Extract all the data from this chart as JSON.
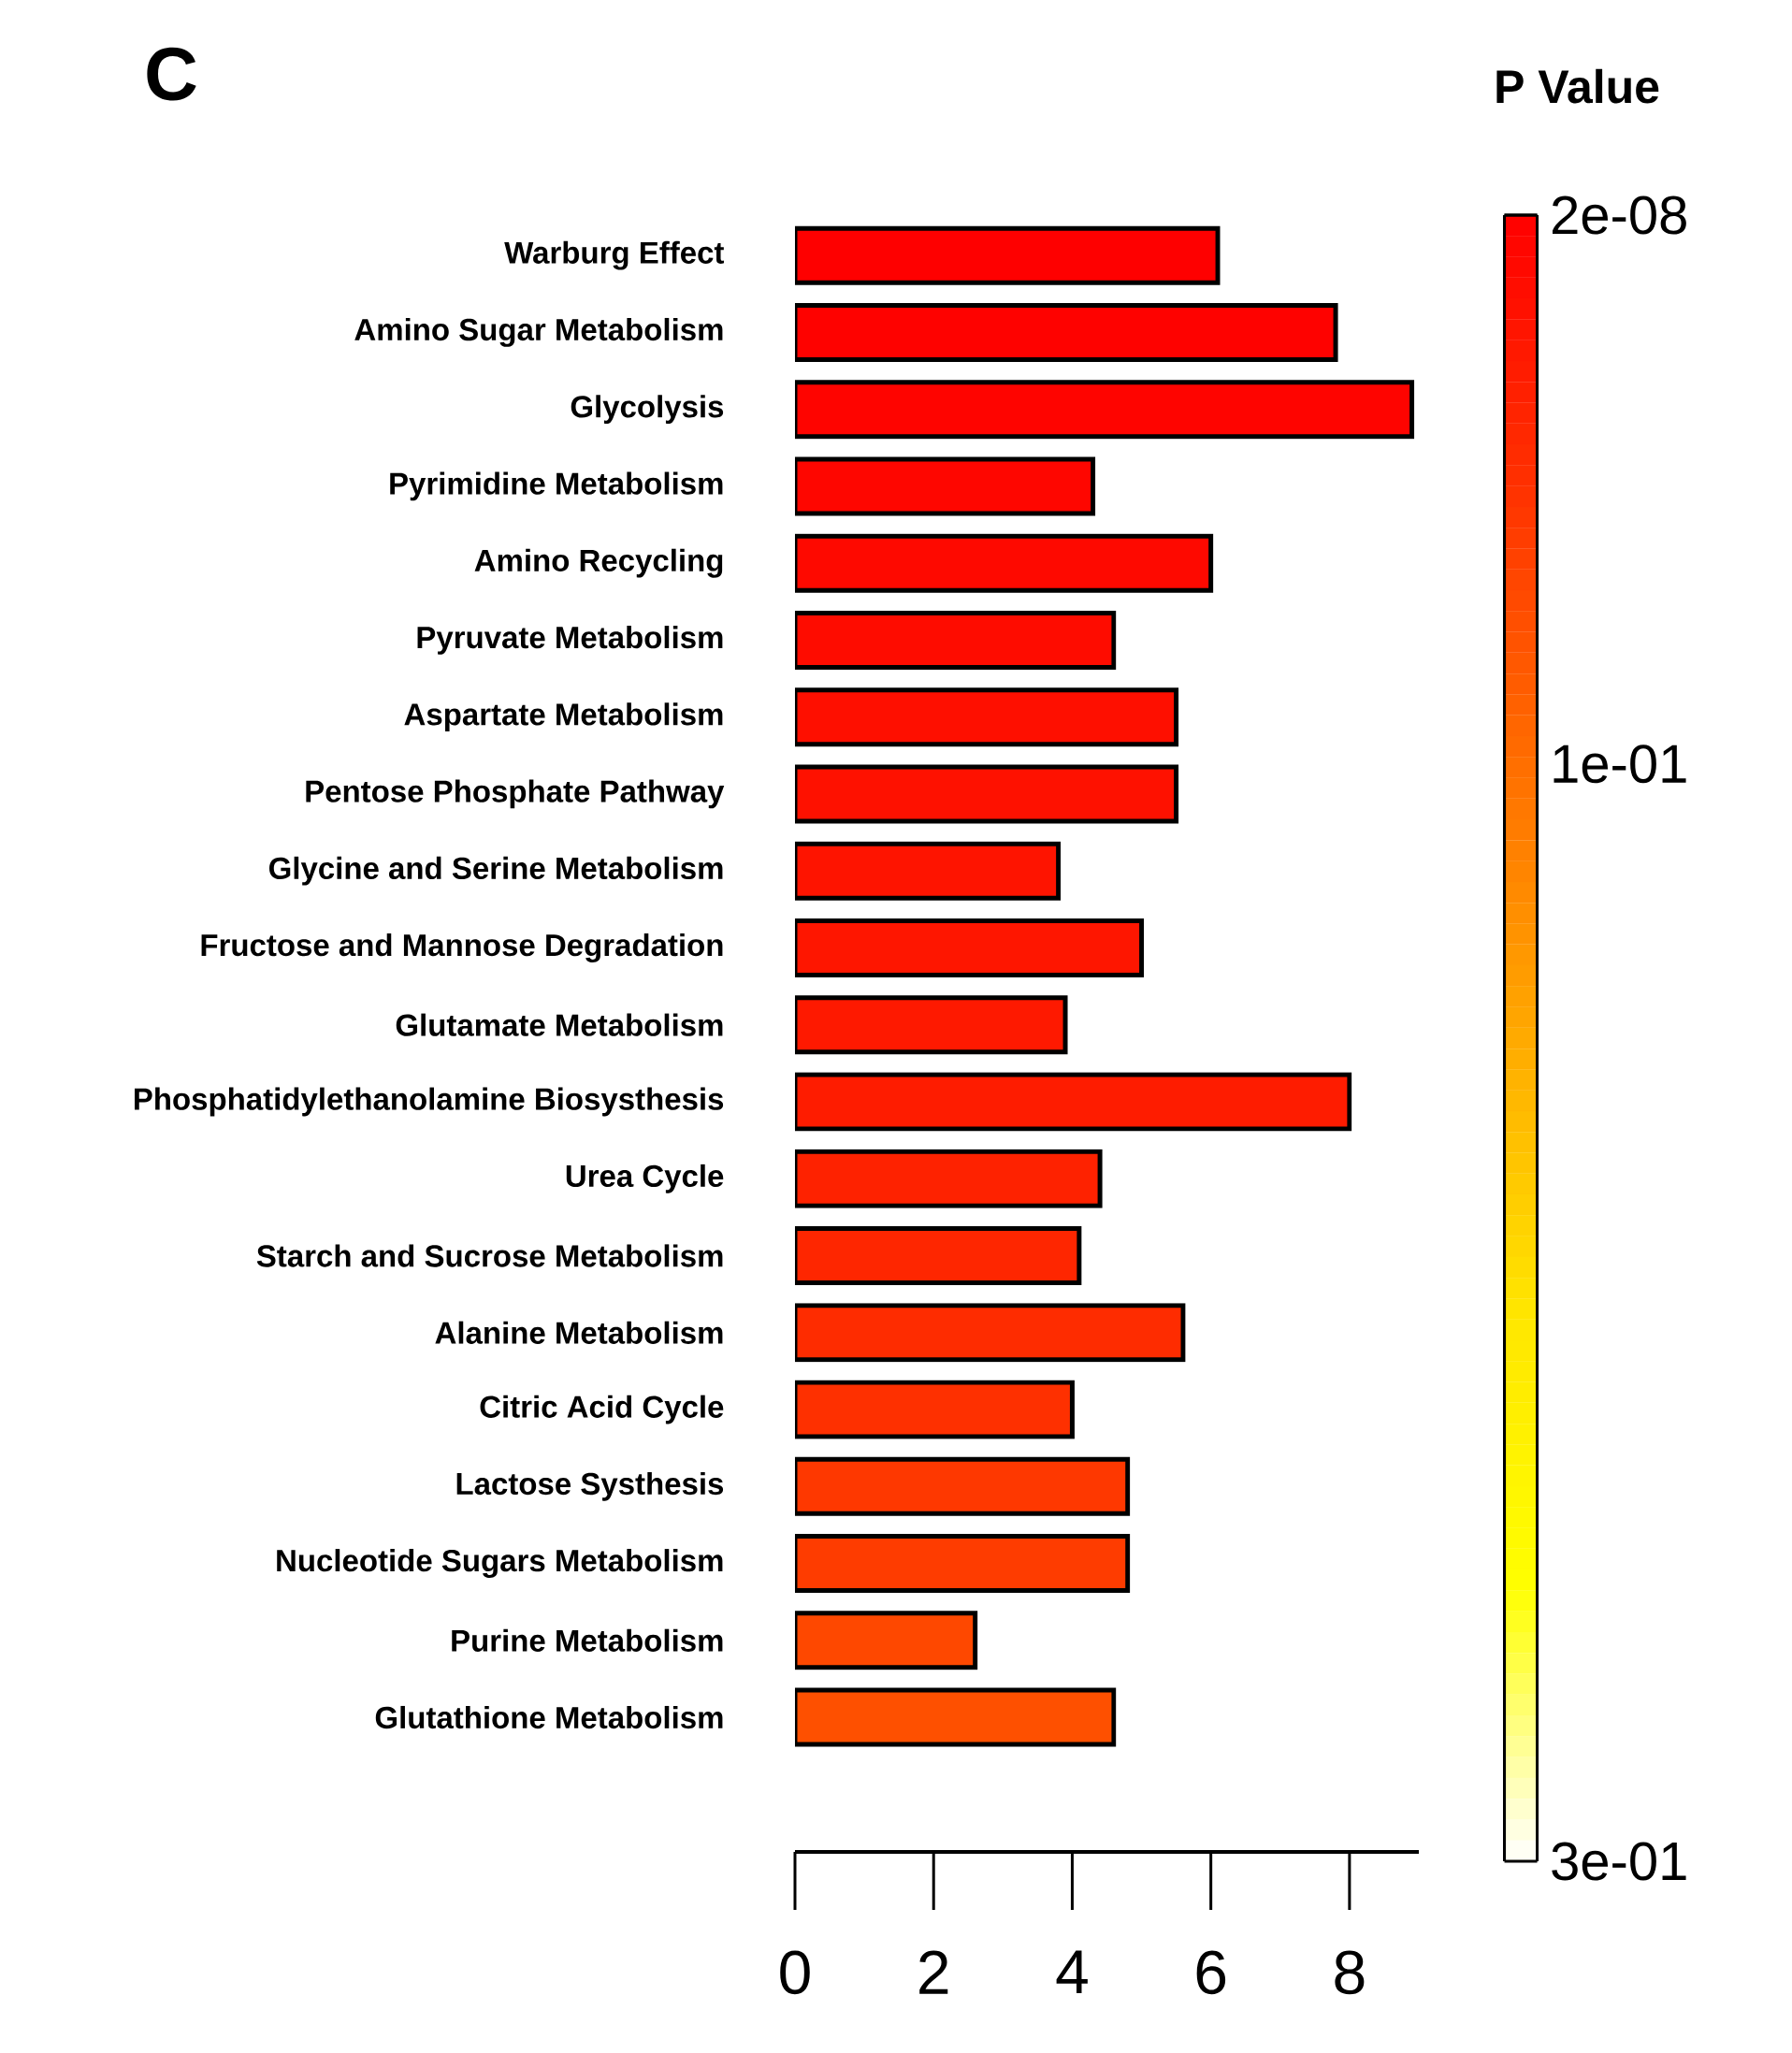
{
  "chart_data": {
    "type": "bar",
    "orientation": "horizontal",
    "title": "C",
    "clabel": "P Value",
    "categories": [
      "Warburg Effect",
      "Amino Sugar Metabolism",
      "Glycolysis",
      "Pyrimidine Metabolism",
      "Amino Recycling",
      "Pyruvate Metabolism",
      "Aspartate Metabolism",
      "Pentose Phosphate Pathway",
      "Glycine and Serine Metabolism",
      "Fructose and Mannose Degradation",
      "Glutamate Metabolism",
      "Phosphatidylethanolamine Biosysthesis",
      "Urea Cycle",
      "Starch and Sucrose Metabolism",
      "Alanine Metabolism",
      "Citric Acid Cycle",
      "Lactose Systhesis",
      "Nucleotide Sugars Metabolism",
      "Purine Metabolism",
      "Glutathione Metabolism"
    ],
    "values": [
      6.1,
      7.8,
      8.9,
      4.3,
      6.0,
      4.6,
      5.5,
      5.5,
      3.8,
      5.0,
      3.9,
      8.0,
      4.4,
      4.1,
      5.6,
      4.0,
      4.8,
      4.8,
      2.6,
      4.6
    ],
    "colors": [
      "#fe0000",
      "#fe0200",
      "#fe0400",
      "#fe0600",
      "#fe0900",
      "#fe0c00",
      "#fe0f00",
      "#fe1100",
      "#fe1400",
      "#fe1600",
      "#fe1900",
      "#fe1c00",
      "#fe2200",
      "#fe2600",
      "#fe2c00",
      "#fe3000",
      "#fe3800",
      "#fe3c00",
      "#fe4800",
      "#fe5000"
    ],
    "xlim": [
      0,
      9
    ],
    "xticks": [
      0,
      2,
      4,
      6,
      8
    ],
    "clim": [
      2e-08,
      0.3
    ],
    "cticks": [
      2e-08,
      {
        "value": 0.1,
        "label": "1e-01"
      },
      {
        "value": 0.3,
        "label": "3e-01"
      }
    ]
  }
}
